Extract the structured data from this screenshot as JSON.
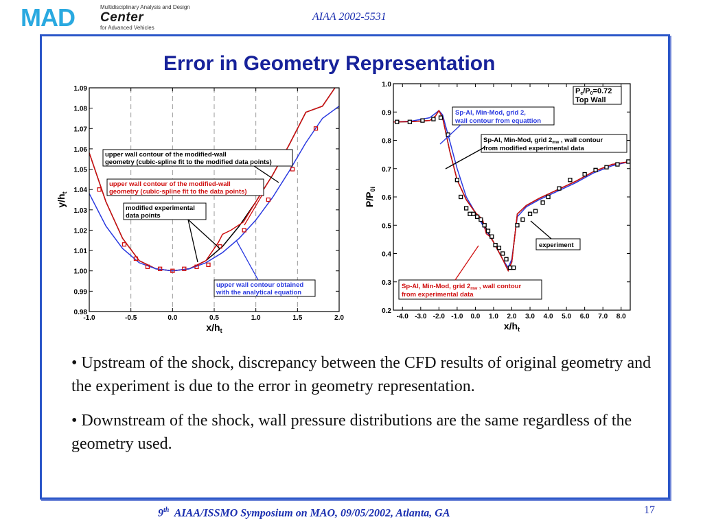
{
  "header": {
    "logo_mad": "MAD",
    "logo_sub1": "Multidisciplinary Analysis and Design",
    "logo_center": "Center",
    "logo_sub2": "for Advanced Vehicles",
    "paper_id": "AIAA 2002-5531"
  },
  "slide": {
    "title": "Error in Geometry Representation",
    "bullets": [
      "• Upstream of the shock, discrepancy between the CFD results of original geometry and the experiment is due to the error in geometry representation.",
      "• Downstream of the shock, wall pressure distributions are the same regardless of the geometry used."
    ]
  },
  "footer": {
    "prefix": "9",
    "superscript": "th",
    "text": "AIAA/ISSMO Symposium on MAO, 09/05/2002, Atlanta, GA",
    "page": "17"
  },
  "colors": {
    "accent": "#17229a",
    "frame": "#2a56c8",
    "red": "#d01010",
    "blue": "#2a3ae0",
    "black": "#000000"
  },
  "chart_data": [
    {
      "type": "line",
      "xlabel": "x/h",
      "xlabel_sub": "t",
      "ylabel": "y/h",
      "ylabel_sub": "t",
      "xlim": [
        -1.0,
        2.0
      ],
      "ylim": [
        0.98,
        1.09
      ],
      "xticks": [
        "-1.0",
        "-0.5",
        "0.0",
        "0.5",
        "1.0",
        "1.5",
        "2.0"
      ],
      "yticks": [
        "0.98",
        "0.99",
        "1.00",
        "1.01",
        "1.02",
        "1.03",
        "1.04",
        "1.05",
        "1.06",
        "1.07",
        "1.08",
        "1.09"
      ],
      "series": [
        {
          "name": "upper wall contour of the modified-wall geometry (cubic-spline fit to the modified data points)",
          "color": "#000000",
          "x": [
            -1.0,
            -0.8,
            -0.6,
            -0.4,
            -0.2,
            0.0,
            0.2,
            0.4,
            0.6,
            0.8,
            1.0,
            1.2,
            1.4,
            1.6,
            1.8,
            1.95
          ],
          "y": [
            1.058,
            1.034,
            1.016,
            1.005,
            1.001,
            1.0,
            1.001,
            1.005,
            1.012,
            1.022,
            1.034,
            1.047,
            1.062,
            1.078,
            1.081,
            1.09
          ]
        },
        {
          "name": "upper wall contour of the modified-wall geometry (cubic-spline fit to the data points)",
          "color": "#d01010",
          "x": [
            -1.0,
            -0.8,
            -0.6,
            -0.4,
            -0.2,
            0.0,
            0.2,
            0.4,
            0.55,
            0.6,
            0.7,
            0.85,
            1.0,
            1.2,
            1.4,
            1.6,
            1.8,
            1.95
          ],
          "y": [
            1.058,
            1.034,
            1.016,
            1.005,
            1.001,
            1.0,
            1.001,
            1.005,
            1.014,
            1.018,
            1.02,
            1.024,
            1.034,
            1.047,
            1.062,
            1.078,
            1.081,
            1.09
          ]
        },
        {
          "name": "upper wall contour obtained with the analytical equation",
          "color": "#2a3ae0",
          "x": [
            -1.0,
            -0.8,
            -0.6,
            -0.4,
            -0.2,
            0.0,
            0.2,
            0.4,
            0.6,
            0.8,
            1.0,
            1.2,
            1.4,
            1.6,
            1.8,
            2.0
          ],
          "y": [
            1.038,
            1.022,
            1.011,
            1.004,
            1.001,
            1.0,
            1.001,
            1.004,
            1.009,
            1.016,
            1.025,
            1.036,
            1.049,
            1.063,
            1.075,
            1.081
          ]
        },
        {
          "name": "modified experimental data points",
          "marker": "square",
          "color": "#d01010",
          "x": [
            -0.88,
            -0.58,
            -0.44,
            -0.3,
            -0.15,
            0.0,
            0.14,
            0.29,
            0.43,
            0.57,
            0.86,
            1.15,
            1.44,
            1.72
          ],
          "y": [
            1.04,
            1.013,
            1.006,
            1.002,
            1.001,
            1.0,
            1.001,
            1.002,
            1.003,
            1.012,
            1.02,
            1.035,
            1.05,
            1.07
          ]
        }
      ],
      "annotations": [
        "upper wall contour of the modified-wall geometry (cubic-spline fit to the modified data points)",
        "upper wall contour of the modified-wall geometry (cubic-spline fit to the data points)",
        "modified experimental data points",
        "upper wall contour obtained with the analytical  equation"
      ]
    },
    {
      "type": "line",
      "xlabel": "x/h",
      "xlabel_sub": "t",
      "ylabel": "P/P",
      "ylabel_sub": "0i",
      "xlim": [
        -4.5,
        8.5
      ],
      "ylim": [
        0.2,
        1.0
      ],
      "xticks": [
        "-4.0",
        "-3.0",
        "-2.0",
        "-1.0",
        "0.0",
        "1.0",
        "2.0",
        "3.0",
        "4.0",
        "5.0",
        "6.0",
        "7.0",
        "8.0"
      ],
      "yticks": [
        "0.2",
        "0.3",
        "0.4",
        "0.5",
        "0.6",
        "0.7",
        "0.8",
        "0.9",
        "1.0"
      ],
      "title_box": {
        "line1": "P",
        "line1_sub": "e",
        "line1_mid": "/P",
        "line1_sub2": "0",
        "line1_end": "=0.72",
        "line2": "Top Wall"
      },
      "series": [
        {
          "name": "Sp-Al, Min-Mod, grid 2, wall contour from equattion",
          "color": "#2a3ae0",
          "x": [
            -4.5,
            -3.5,
            -2.5,
            -2.0,
            -1.8,
            -1.5,
            -1.0,
            -0.5,
            0.0,
            0.5,
            1.0,
            1.5,
            1.8,
            2.0,
            2.3,
            2.8,
            3.5,
            4.5,
            5.5,
            6.5,
            7.5,
            8.5
          ],
          "y": [
            0.865,
            0.868,
            0.88,
            0.905,
            0.89,
            0.82,
            0.7,
            0.6,
            0.545,
            0.49,
            0.44,
            0.38,
            0.35,
            0.38,
            0.53,
            0.565,
            0.59,
            0.62,
            0.65,
            0.685,
            0.71,
            0.725
          ]
        },
        {
          "name": "Sp-Al, Min-Mod, grid 2mw , wall contour from modified experimental data",
          "color": "#000000",
          "x": [
            -4.5,
            -3.5,
            -2.5,
            -2.2,
            -2.0,
            -1.8,
            -1.4,
            -1.0,
            -0.5,
            0.0,
            0.5,
            1.0,
            1.5,
            1.8,
            2.0,
            2.3,
            2.8,
            3.5,
            4.5,
            5.5,
            6.5,
            7.5,
            8.5
          ],
          "y": [
            0.865,
            0.866,
            0.87,
            0.885,
            0.905,
            0.88,
            0.76,
            0.66,
            0.59,
            0.545,
            0.5,
            0.44,
            0.38,
            0.34,
            0.37,
            0.54,
            0.57,
            0.595,
            0.625,
            0.655,
            0.69,
            0.715,
            0.725
          ]
        },
        {
          "name": "Sp-Al, Min-Mod, grid 2mw , wall contour from experimental data",
          "color": "#d01010",
          "x": [
            -4.5,
            -3.5,
            -2.5,
            -2.2,
            -2.0,
            -1.8,
            -1.4,
            -1.0,
            -0.5,
            0.0,
            0.4,
            0.6,
            0.8,
            1.0,
            1.5,
            1.8,
            2.0,
            2.3,
            2.8,
            3.5,
            4.5,
            5.5,
            6.5,
            7.5,
            8.5
          ],
          "y": [
            0.865,
            0.866,
            0.87,
            0.885,
            0.905,
            0.88,
            0.76,
            0.66,
            0.59,
            0.545,
            0.52,
            0.47,
            0.46,
            0.44,
            0.38,
            0.34,
            0.37,
            0.54,
            0.57,
            0.595,
            0.625,
            0.655,
            0.69,
            0.715,
            0.725
          ]
        },
        {
          "name": "experiment",
          "marker": "square-open",
          "color": "#000000",
          "x": [
            -4.3,
            -3.6,
            -2.9,
            -2.3,
            -1.9,
            -1.5,
            -1.0,
            -0.8,
            -0.5,
            -0.3,
            -0.1,
            0.1,
            0.3,
            0.5,
            0.7,
            0.9,
            1.1,
            1.3,
            1.5,
            1.7,
            1.9,
            2.1,
            2.3,
            2.6,
            3.0,
            3.3,
            3.7,
            4.0,
            4.6,
            5.2,
            6.0,
            6.6,
            7.2,
            7.8,
            8.4
          ],
          "y": [
            0.865,
            0.865,
            0.87,
            0.875,
            0.88,
            0.82,
            0.66,
            0.6,
            0.56,
            0.54,
            0.54,
            0.53,
            0.52,
            0.5,
            0.48,
            0.46,
            0.43,
            0.42,
            0.4,
            0.38,
            0.35,
            0.35,
            0.5,
            0.52,
            0.54,
            0.55,
            0.58,
            0.6,
            0.63,
            0.66,
            0.68,
            0.695,
            0.705,
            0.715,
            0.725
          ]
        }
      ],
      "annotations": [
        "Sp-Al, Min-Mod, grid 2,",
        "wall contour from equattion",
        "Sp-Al, Min-Mod, grid 2",
        "mw",
        " , wall contour",
        "from modified experimental data",
        "experiment",
        "Sp-Al, Min-Mod, grid 2",
        "mw",
        " , wall contour",
        "from experimental data"
      ]
    }
  ]
}
